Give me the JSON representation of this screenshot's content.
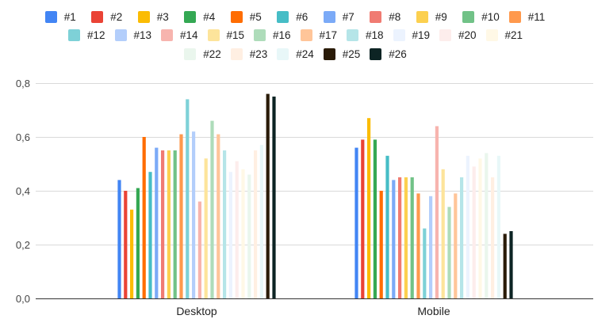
{
  "chart_data": {
    "type": "bar",
    "categories": [
      "Desktop",
      "Mobile"
    ],
    "ylim": [
      0,
      0.8
    ],
    "yticks": [
      "0,0",
      "0,2",
      "0,4",
      "0,6",
      "0,8"
    ],
    "ytick_values": [
      0,
      0.2,
      0.4,
      0.6,
      0.8
    ],
    "grid": true,
    "legend_position": "top",
    "series": [
      {
        "name": "#1",
        "color": "#4285F4",
        "values": [
          0.44,
          0.56
        ]
      },
      {
        "name": "#2",
        "color": "#EA4335",
        "values": [
          0.4,
          0.59
        ]
      },
      {
        "name": "#3",
        "color": "#FBBC04",
        "values": [
          0.33,
          0.67
        ]
      },
      {
        "name": "#4",
        "color": "#34A853",
        "values": [
          0.41,
          0.59
        ]
      },
      {
        "name": "#5",
        "color": "#FF6D01",
        "values": [
          0.6,
          0.4
        ]
      },
      {
        "name": "#6",
        "color": "#46BDC6",
        "values": [
          0.47,
          0.53
        ]
      },
      {
        "name": "#7",
        "color": "#7BAAF7",
        "values": [
          0.56,
          0.44
        ]
      },
      {
        "name": "#8",
        "color": "#F07B72",
        "values": [
          0.55,
          0.45
        ]
      },
      {
        "name": "#9",
        "color": "#FCD04F",
        "values": [
          0.55,
          0.45
        ]
      },
      {
        "name": "#10",
        "color": "#71C287",
        "values": [
          0.55,
          0.45
        ]
      },
      {
        "name": "#11",
        "color": "#FF994D",
        "values": [
          0.61,
          0.39
        ]
      },
      {
        "name": "#12",
        "color": "#7ED1D7",
        "values": [
          0.74,
          0.26
        ]
      },
      {
        "name": "#13",
        "color": "#B3CEFB",
        "values": [
          0.62,
          0.38
        ]
      },
      {
        "name": "#14",
        "color": "#F7B4AE",
        "values": [
          0.36,
          0.64
        ]
      },
      {
        "name": "#15",
        "color": "#FDE49B",
        "values": [
          0.52,
          0.48
        ]
      },
      {
        "name": "#16",
        "color": "#AEDCBA",
        "values": [
          0.66,
          0.34
        ]
      },
      {
        "name": "#17",
        "color": "#FFC599",
        "values": [
          0.61,
          0.39
        ]
      },
      {
        "name": "#18",
        "color": "#B5E5E8",
        "values": [
          0.55,
          0.45
        ]
      },
      {
        "name": "#19",
        "color": "#ECF3FE",
        "values": [
          0.47,
          0.53
        ]
      },
      {
        "name": "#20",
        "color": "#FDEDEC",
        "values": [
          0.51,
          0.49
        ]
      },
      {
        "name": "#21",
        "color": "#FFF8E6",
        "values": [
          0.48,
          0.52
        ]
      },
      {
        "name": "#22",
        "color": "#EAF6ED",
        "values": [
          0.46,
          0.54
        ]
      },
      {
        "name": "#23",
        "color": "#FFEFE2",
        "values": [
          0.55,
          0.45
        ]
      },
      {
        "name": "#24",
        "color": "#E8F7F8",
        "values": [
          0.57,
          0.53
        ]
      },
      {
        "name": "#25",
        "color": "#2A1B08",
        "values": [
          0.76,
          0.24
        ]
      },
      {
        "name": "#26",
        "color": "#0D2424",
        "values": [
          0.75,
          0.25
        ]
      }
    ]
  }
}
